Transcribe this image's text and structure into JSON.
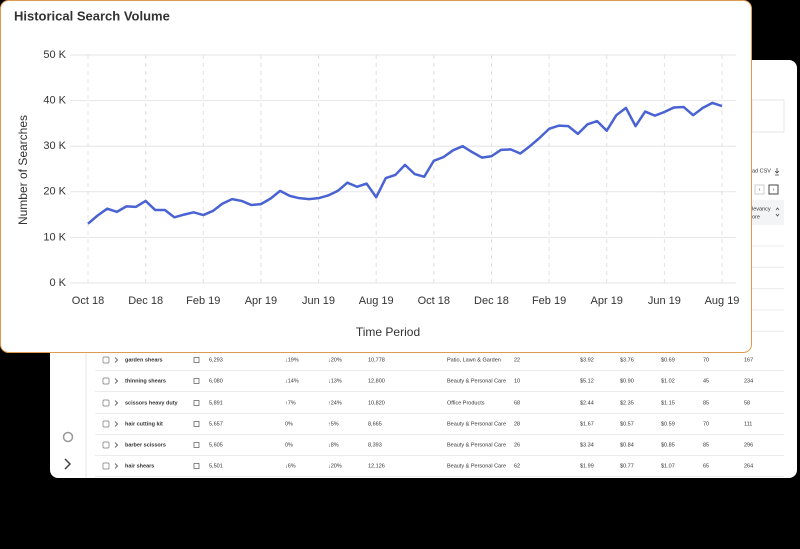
{
  "chart_data": {
    "type": "line",
    "title": "Historical Search Volume",
    "x_label": "Time Period",
    "y_label": "Number of Searches",
    "categories": [
      "Oct 18",
      null,
      null,
      null,
      null,
      null,
      "Dec 18",
      null,
      null,
      null,
      null,
      null,
      "Feb 19",
      null,
      null,
      null,
      null,
      null,
      "Apr 19",
      null,
      null,
      null,
      null,
      null,
      "Jun 19",
      null,
      null,
      null,
      null,
      null,
      "Aug 19",
      null,
      null,
      null,
      null,
      null,
      "Oct 18",
      null,
      null,
      null,
      null,
      null,
      "Dec 18",
      null,
      null,
      null,
      null,
      null,
      "Feb 19",
      null,
      null,
      null,
      null,
      null,
      "Apr 19",
      null,
      null,
      null,
      null,
      null,
      "Jun 19",
      null,
      null,
      null,
      null,
      null,
      "Aug 19"
    ],
    "values": [
      13000,
      14800,
      16300,
      15600,
      16800,
      16700,
      18000,
      16000,
      16000,
      14400,
      15000,
      15500,
      14900,
      15800,
      17400,
      18400,
      18000,
      17100,
      17300,
      18500,
      20200,
      19100,
      18600,
      18400,
      18600,
      19200,
      20200,
      22000,
      21100,
      21800,
      18800,
      23000,
      23700,
      25900,
      23900,
      23300,
      26800,
      27600,
      29100,
      30000,
      28700,
      27500,
      27800,
      29200,
      29300,
      28400,
      30000,
      31800,
      33800,
      34500,
      34400,
      32700,
      34800,
      35500,
      33400,
      36800,
      38400,
      34400,
      37600,
      36700,
      37500,
      38500,
      38600,
      36800,
      38400,
      39500,
      38800
    ],
    "color": "#4a63d3",
    "ylim": [
      0,
      50000
    ],
    "yticks": [
      {
        "value": 0,
        "label": "0 K"
      },
      {
        "value": 10000,
        "label": "10 K"
      },
      {
        "value": 20000,
        "label": "20 K"
      },
      {
        "value": 30000,
        "label": "30 K"
      },
      {
        "value": 40000,
        "label": "40 K"
      },
      {
        "value": 50000,
        "label": "50 K"
      }
    ],
    "grid": true
  },
  "toolbar": {
    "download": "ad CSV",
    "prev": "‹",
    "next": "›"
  },
  "table": {
    "header_last": [
      "levancy",
      "ore"
    ],
    "rows": [
      [
        "garden shears",
        "6,293",
        "↓19%",
        "↓20%",
        "10,778",
        "Patio, Lawn & Garden",
        "22",
        "$3.92",
        "$3.76",
        "$0.69",
        "70",
        "167"
      ],
      [
        "thinning shears",
        "6,080",
        "↓14%",
        "↓13%",
        "12,800",
        "Beauty & Personal Care",
        "10",
        "$5.12",
        "$0.90",
        "$1.02",
        "45",
        "234"
      ],
      [
        "scissors heavy duty",
        "5,891",
        "↑7%",
        "↑24%",
        "10,820",
        "Office Products",
        "68",
        "$2.44",
        "$2.35",
        "$1.15",
        "85",
        "58"
      ],
      [
        "hair cutting kit",
        "5,657",
        "0%",
        "↑5%",
        "8,665",
        "Beauty & Personal Care",
        "28",
        "$1.67",
        "$0.57",
        "$0.59",
        "70",
        "111"
      ],
      [
        "barber scissors",
        "5,605",
        "0%",
        "↓8%",
        "8,393",
        "Beauty & Personal Care",
        "26",
        "$3.34",
        "$0.84",
        "$0.85",
        "85",
        "296"
      ],
      [
        "hair shears",
        "5,501",
        "↓6%",
        "↓20%",
        "12,126",
        "Beauty & Personal Care",
        "62",
        "$1.99",
        "$0.77",
        "$1.07",
        "65",
        "264"
      ]
    ]
  }
}
